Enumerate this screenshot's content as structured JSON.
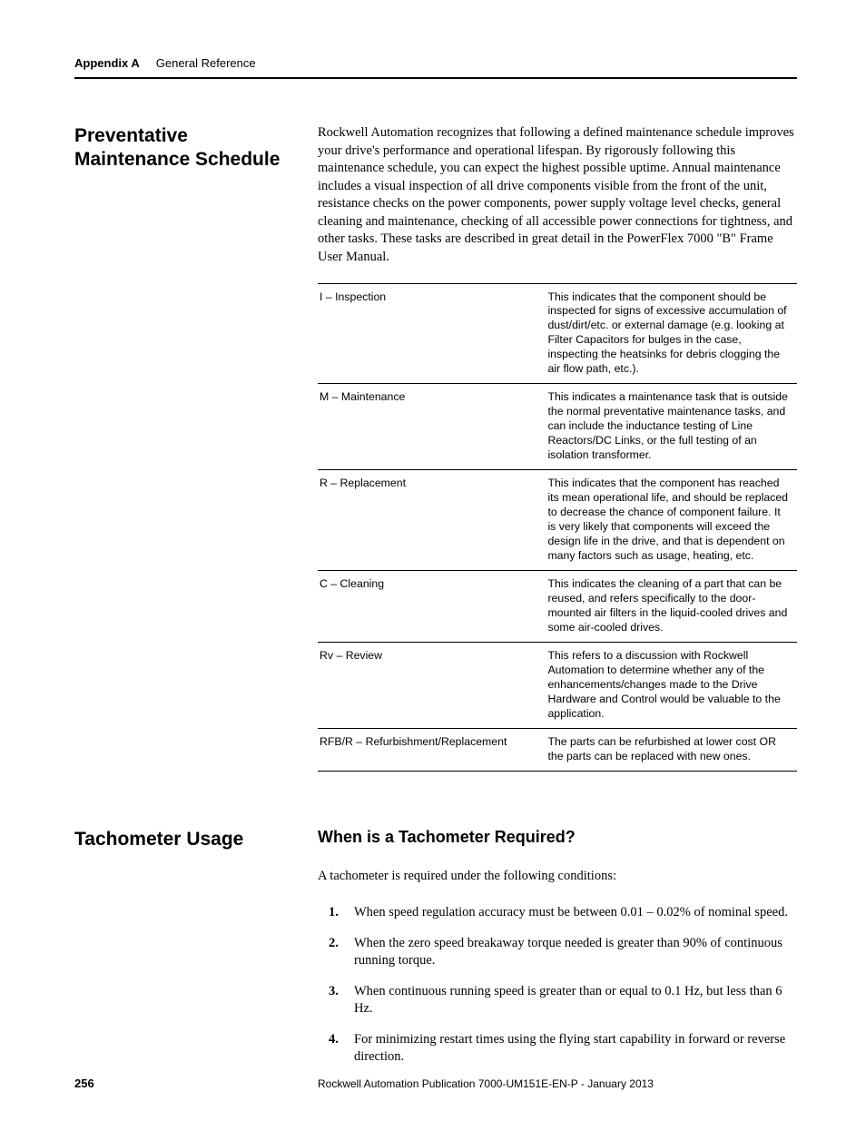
{
  "header": {
    "appendix_label": "Appendix A",
    "chapter_title": "General Reference"
  },
  "section1": {
    "heading": "Preventative Maintenance Schedule",
    "body": "Rockwell Automation recognizes that following a defined maintenance schedule improves your drive's performance and operational lifespan. By rigorously following this maintenance schedule, you can expect the highest possible uptime. Annual maintenance includes a visual inspection of all drive components visible from the front of the unit, resistance checks on the power components, power supply voltage level checks, general cleaning and maintenance, checking of all accessible power connections for tightness, and other tasks. These tasks are described in great detail in the PowerFlex 7000 \"B\" Frame User Manual."
  },
  "table": {
    "rows": [
      {
        "code": "I – Inspection",
        "desc": "This indicates that the component should be inspected for signs of excessive accumulation of dust/dirt/etc. or external damage (e.g. looking at Filter Capacitors for bulges in the case, inspecting the heatsinks for debris clogging the air flow path, etc.)."
      },
      {
        "code": "M – Maintenance",
        "desc": "This indicates a maintenance task that is outside the normal preventative maintenance tasks, and can include the inductance testing of Line Reactors/DC Links, or the full testing of an isolation transformer."
      },
      {
        "code": "R – Replacement",
        "desc": "This indicates that the component has reached its mean operational life, and should be replaced to decrease the chance of component failure. It is very likely that components will exceed the design life in the drive, and that is dependent on many factors such as usage, heating, etc."
      },
      {
        "code": "C – Cleaning",
        "desc": "This indicates the cleaning of a part that can be reused, and refers specifically to the door-mounted air filters in the liquid-cooled drives and some air-cooled drives."
      },
      {
        "code": "Rv – Review",
        "desc": "This refers to a discussion with Rockwell Automation to determine whether any of the enhancements/changes made to the Drive Hardware and Control would be valuable to the application."
      },
      {
        "code": "RFB/R – Refurbishment/Replacement",
        "desc": "The parts can be refurbished at lower cost OR the parts can be replaced with new ones."
      }
    ]
  },
  "section2": {
    "heading": "Tachometer Usage",
    "subheading": "When is a Tachometer Required?",
    "intro": "A tachometer is required under the following conditions:",
    "items": [
      {
        "num": "1.",
        "text": "When speed regulation accuracy must be between 0.01 – 0.02% of nominal speed."
      },
      {
        "num": "2.",
        "text": "When the zero speed breakaway torque needed is greater than 90% of continuous running torque."
      },
      {
        "num": "3.",
        "text": "When continuous running speed is greater than or equal to 0.1 Hz, but less than 6 Hz."
      },
      {
        "num": "4.",
        "text": "For minimizing restart times using the flying start capability in forward or reverse direction."
      }
    ]
  },
  "footer": {
    "page": "256",
    "publication": "Rockwell Automation Publication 7000-UM151E-EN-P - January 2013"
  },
  "colors": {
    "text": "#000000",
    "background": "#ffffff",
    "rule": "#000000"
  }
}
